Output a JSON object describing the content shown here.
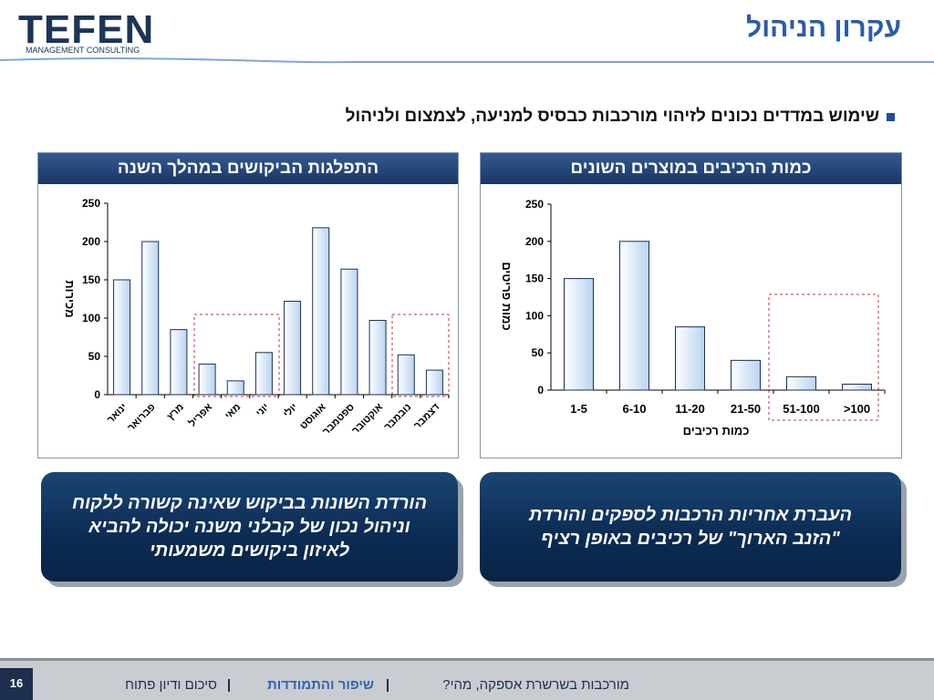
{
  "header": {
    "title": "עקרון הניהול",
    "logo": "TEFEN",
    "logo_sub": "MANAGEMENT CONSULTING"
  },
  "bullet": "שימוש במדדים נכונים לזיהוי מורכבות כבסיס למניעה, לצמצום ולניהול",
  "chart_data": [
    {
      "type": "bar",
      "title": "התפלגות הביקושים במהלך השנה",
      "y_label": "מכירות",
      "categories": [
        "ינואר",
        "פברואר",
        "מרץ",
        "אפריל",
        "מאי",
        "יוני",
        "יולי",
        "אוגוסט",
        "ספטמבר",
        "אוקטובר",
        "נובמבר",
        "דצמבר"
      ],
      "values": [
        150,
        200,
        85,
        40,
        18,
        55,
        122,
        218,
        164,
        97,
        52,
        32
      ],
      "color": "#b9d4ef",
      "ylim": [
        0,
        250
      ],
      "yticks": [
        0,
        50,
        100,
        150,
        200,
        250
      ]
    },
    {
      "type": "bar",
      "title": "כמות הרכיבים במוצרים השונים",
      "y_label": "כמות פריטים",
      "x_label": "כמות רכיבים",
      "categories": [
        "1-5",
        "6-10",
        "11-20",
        "21-50",
        "51-100",
        ">100"
      ],
      "values": [
        150,
        200,
        85,
        40,
        18,
        8
      ],
      "color": "#b9d4ef",
      "ylim": [
        0,
        250
      ],
      "yticks": [
        0,
        50,
        100,
        150,
        200,
        250
      ]
    }
  ],
  "boxes": [
    "הורדת השונות בביקוש שאינה קשורה ללקוח וניהול נכון של קבלני משנה יכולה להביא לאיזון ביקושים משמעותי",
    "העברת אחריות הרכבות לספקים והורדת \"הזנב הארוך\" של רכיבים באופן רציף"
  ],
  "footer": {
    "page": "16",
    "items": [
      "מורכבות בשרשרת אספקה, מהי?",
      "שיפור והתמודדות",
      "סיכום ודיון פתוח"
    ]
  }
}
